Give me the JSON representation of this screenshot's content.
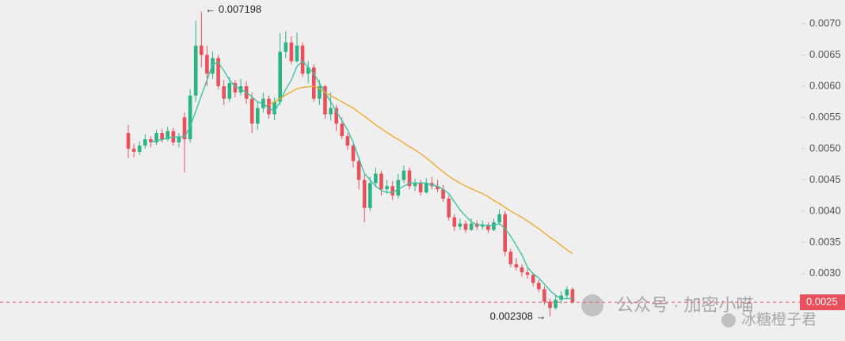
{
  "chart_data": {
    "type": "candlestick",
    "ylim": [
      0.00206,
      0.00738
    ],
    "yticks": [
      {
        "value": 0.003,
        "label": "0.0030"
      },
      {
        "value": 0.0035,
        "label": "0.0035"
      },
      {
        "value": 0.004,
        "label": "0.0040"
      },
      {
        "value": 0.0045,
        "label": "0.0045"
      },
      {
        "value": 0.005,
        "label": "0.0050"
      },
      {
        "value": 0.0055,
        "label": "0.0055"
      },
      {
        "value": 0.006,
        "label": "0.0060"
      },
      {
        "value": 0.0065,
        "label": "0.0065"
      },
      {
        "value": 0.007,
        "label": "0.0070"
      }
    ],
    "up_color": "#2bb384",
    "down_color": "#e8505b",
    "open": [
      0.00525,
      0.005,
      0.00495,
      0.00505,
      0.00515,
      0.0051,
      0.00525,
      0.00515,
      0.00528,
      0.0051,
      0.0055,
      0.00515,
      0.00585,
      0.00665,
      0.0065,
      0.0062,
      0.00645,
      0.006,
      0.0058,
      0.00605,
      0.0059,
      0.006,
      0.0058,
      0.0054,
      0.00565,
      0.0058,
      0.00555,
      0.00575,
      0.00655,
      0.0067,
      0.0064,
      0.00665,
      0.0062,
      0.0063,
      0.0058,
      0.006,
      0.00555,
      0.00565,
      0.0054,
      0.0052,
      0.00505,
      0.0048,
      0.0045,
      0.00405,
      0.00445,
      0.0046,
      0.00435,
      0.0044,
      0.00425,
      0.0045,
      0.00465,
      0.0044,
      0.00445,
      0.0043,
      0.00445,
      0.0044,
      0.00435,
      0.0042,
      0.0039,
      0.00375,
      0.0038,
      0.0037,
      0.0038,
      0.00375,
      0.00378,
      0.0037,
      0.00382,
      0.00395,
      0.00335,
      0.00315,
      0.0031,
      0.00302,
      0.00298,
      0.00285,
      0.00275,
      0.00255,
      0.00245,
      0.00258,
      0.00265,
      0.00275
    ],
    "high": [
      0.00538,
      0.00508,
      0.00512,
      0.00523,
      0.0052,
      0.0053,
      0.00532,
      0.00535,
      0.00533,
      0.00525,
      0.00558,
      0.00595,
      0.00705,
      0.007198,
      0.00665,
      0.00655,
      0.0065,
      0.0061,
      0.00615,
      0.0061,
      0.00612,
      0.00608,
      0.0059,
      0.00575,
      0.0059,
      0.00585,
      0.00582,
      0.00685,
      0.00688,
      0.0068,
      0.00686,
      0.0067,
      0.0064,
      0.00635,
      0.0061,
      0.00602,
      0.0059,
      0.0057,
      0.0055,
      0.00525,
      0.0051,
      0.00488,
      0.0046,
      0.00455,
      0.0047,
      0.00465,
      0.0045,
      0.00448,
      0.0046,
      0.00473,
      0.0047,
      0.00452,
      0.0045,
      0.00453,
      0.00455,
      0.0045,
      0.00442,
      0.00425,
      0.00395,
      0.00388,
      0.00385,
      0.00388,
      0.00385,
      0.00385,
      0.00382,
      0.00388,
      0.00403,
      0.004,
      0.0034,
      0.00325,
      0.00315,
      0.00308,
      0.003,
      0.0029,
      0.0028,
      0.0026,
      0.00265,
      0.00272,
      0.0028,
      0.00278
    ],
    "low": [
      0.00485,
      0.00486,
      0.0049,
      0.005,
      0.00502,
      0.00506,
      0.0051,
      0.00512,
      0.00505,
      0.00502,
      0.00462,
      0.0051,
      0.00575,
      0.0063,
      0.006,
      0.00612,
      0.00595,
      0.0057,
      0.00575,
      0.00582,
      0.00585,
      0.00572,
      0.00525,
      0.0053,
      0.00558,
      0.00548,
      0.00545,
      0.0057,
      0.00645,
      0.00635,
      0.00638,
      0.00615,
      0.00605,
      0.00575,
      0.0057,
      0.00548,
      0.00545,
      0.00528,
      0.00515,
      0.00498,
      0.0047,
      0.00435,
      0.00382,
      0.004,
      0.00438,
      0.00425,
      0.00428,
      0.00418,
      0.0042,
      0.00445,
      0.00435,
      0.00432,
      0.00425,
      0.00428,
      0.00435,
      0.0043,
      0.00415,
      0.00385,
      0.00368,
      0.0037,
      0.00365,
      0.00368,
      0.0037,
      0.0037,
      0.00365,
      0.00368,
      0.00378,
      0.00328,
      0.0031,
      0.00305,
      0.00295,
      0.00292,
      0.0028,
      0.0027,
      0.0025,
      0.002308,
      0.00242,
      0.00252,
      0.0026,
      0.00252
    ],
    "close": [
      0.005,
      0.00495,
      0.00505,
      0.00515,
      0.0051,
      0.00525,
      0.00515,
      0.00528,
      0.0051,
      0.00518,
      0.00515,
      0.00585,
      0.00665,
      0.0065,
      0.0062,
      0.00645,
      0.006,
      0.0058,
      0.00605,
      0.0059,
      0.006,
      0.0058,
      0.0054,
      0.00565,
      0.0058,
      0.00555,
      0.00575,
      0.00655,
      0.0067,
      0.0064,
      0.00665,
      0.0062,
      0.0063,
      0.0058,
      0.006,
      0.00555,
      0.00565,
      0.0054,
      0.0052,
      0.00505,
      0.0048,
      0.0045,
      0.00405,
      0.00445,
      0.0046,
      0.00435,
      0.0044,
      0.00425,
      0.0045,
      0.00465,
      0.0044,
      0.00445,
      0.0043,
      0.00445,
      0.0044,
      0.00435,
      0.0042,
      0.0039,
      0.00375,
      0.0038,
      0.0037,
      0.0038,
      0.00375,
      0.00378,
      0.0037,
      0.00382,
      0.00395,
      0.00335,
      0.00315,
      0.0031,
      0.00302,
      0.00298,
      0.00285,
      0.00275,
      0.00255,
      0.00245,
      0.00258,
      0.00265,
      0.00275,
      0.00254
    ],
    "series": [
      {
        "color": "#3cc3a2",
        "values": [
          null,
          null,
          null,
          null,
          0.0051,
          0.00513,
          0.00514,
          0.00518,
          0.00518,
          0.00519,
          0.00519,
          0.00535,
          0.0056,
          0.00585,
          0.0061,
          0.00635,
          0.00638,
          0.00625,
          0.0061,
          0.006,
          0.00595,
          0.0059,
          0.00583,
          0.00575,
          0.00572,
          0.00565,
          0.0056,
          0.00575,
          0.00595,
          0.0061,
          0.00632,
          0.0064,
          0.0063,
          0.0062,
          0.00605,
          0.0059,
          0.00575,
          0.0056,
          0.00545,
          0.0053,
          0.0051,
          0.00485,
          0.0046,
          0.0045,
          0.0044,
          0.00433,
          0.0043,
          0.0043,
          0.00435,
          0.0044,
          0.00445,
          0.00445,
          0.00445,
          0.00445,
          0.00442,
          0.0044,
          0.00435,
          0.00428,
          0.00415,
          0.00402,
          0.00392,
          0.00383,
          0.00378,
          0.00378,
          0.00377,
          0.00377,
          0.0038,
          0.00372,
          0.0036,
          0.00345,
          0.0033,
          0.0031,
          0.003,
          0.00293,
          0.00283,
          0.00273,
          0.00265,
          0.0026,
          0.0026,
          0.0026
        ]
      },
      {
        "color": "#f0a92e",
        "values": [
          null,
          null,
          null,
          null,
          null,
          null,
          null,
          null,
          null,
          null,
          null,
          null,
          null,
          null,
          null,
          null,
          null,
          null,
          null,
          null,
          null,
          null,
          null,
          null,
          null,
          0.0057,
          0.00575,
          0.0058,
          0.00586,
          0.00591,
          0.00596,
          0.00598,
          0.00599,
          0.006,
          0.00596,
          0.0059,
          0.00585,
          0.0058,
          0.00575,
          0.0057,
          0.00565,
          0.00558,
          0.00552,
          0.00545,
          0.00538,
          0.00532,
          0.00526,
          0.0052,
          0.00515,
          0.00509,
          0.00503,
          0.00498,
          0.00492,
          0.00485,
          0.00478,
          0.0047,
          0.00463,
          0.00456,
          0.0045,
          0.00445,
          0.0044,
          0.00436,
          0.00432,
          0.00428,
          0.00423,
          0.00417,
          0.00412,
          0.00406,
          0.004,
          0.00395,
          0.0039,
          0.00384,
          0.00378,
          0.00372,
          0.00365,
          0.00358,
          0.00352,
          0.00345,
          0.00338,
          0.00332
        ]
      }
    ],
    "last_price": {
      "value": 0.00254,
      "label": "0.0025"
    },
    "high_annotation": "← 0.007198",
    "low_annotation": "0.002308 →"
  },
  "watermark": {
    "account": "公众号 · 加密小喵",
    "author": "冰糖橙子君"
  }
}
